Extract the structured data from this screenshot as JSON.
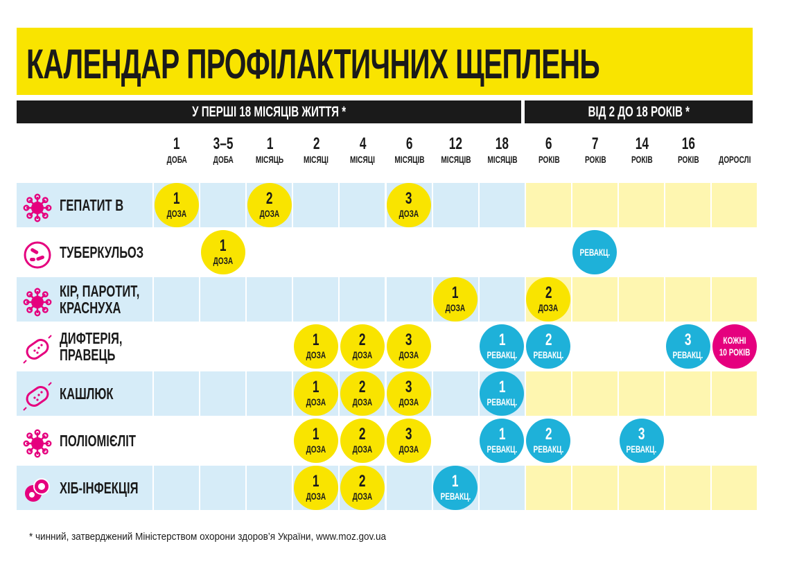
{
  "title": "КАЛЕНДАР ПРОФІЛАКТИЧНИХ ЩЕПЛЕНЬ",
  "bands": {
    "left": "У ПЕРШІ 18 МІСЯЦІВ ЖИТТЯ *",
    "right": "ВІД 2 ДО 18 РОКІВ *"
  },
  "colors": {
    "yellow": "#f9e400",
    "blue": "#1eb1d9",
    "magenta": "#e5007e",
    "light_blue": "#d6ecf8",
    "light_yellow": "#fef6b0",
    "icon": "#e5007e"
  },
  "columns": [
    {
      "n": "1",
      "u": "ДОБА"
    },
    {
      "n": "3–5",
      "u": "ДОБА"
    },
    {
      "n": "1",
      "u": "МІСЯЦЬ"
    },
    {
      "n": "2",
      "u": "МІСЯЦІ"
    },
    {
      "n": "4",
      "u": "МІСЯЦІ"
    },
    {
      "n": "6",
      "u": "МІСЯЦІВ"
    },
    {
      "n": "12",
      "u": "МІСЯЦІВ"
    },
    {
      "n": "18",
      "u": "МІСЯЦІВ"
    },
    {
      "n": "6",
      "u": "РОКІВ"
    },
    {
      "n": "7",
      "u": "РОКІВ"
    },
    {
      "n": "14",
      "u": "РОКІВ"
    },
    {
      "n": "16",
      "u": "РОКІВ"
    },
    {
      "n": "",
      "u": "ДОРОСЛІ"
    }
  ],
  "rows": [
    {
      "name": "ГЕПАТИТ В",
      "icon": "virus-icon",
      "shaded": true,
      "doses": [
        {
          "col": 0,
          "n": "1",
          "u": "ДОЗА",
          "c": "yellow"
        },
        {
          "col": 2,
          "n": "2",
          "u": "ДОЗА",
          "c": "yellow"
        },
        {
          "col": 5,
          "n": "3",
          "u": "ДОЗА",
          "c": "yellow"
        }
      ]
    },
    {
      "name": "ТУБЕРКУЛЬОЗ",
      "icon": "bacteria-icon",
      "shaded": false,
      "doses": [
        {
          "col": 1,
          "n": "1",
          "u": "ДОЗА",
          "c": "yellow"
        },
        {
          "col": 9,
          "n": "",
          "u": "РЕВАКЦ.",
          "c": "blue"
        }
      ]
    },
    {
      "name": "КІР, ПАРОТИТ, КРАСНУХА",
      "icon": "virus-icon",
      "shaded": true,
      "doses": [
        {
          "col": 6,
          "n": "1",
          "u": "ДОЗА",
          "c": "yellow"
        },
        {
          "col": 8,
          "n": "2",
          "u": "ДОЗА",
          "c": "yellow"
        }
      ]
    },
    {
      "name": "ДИФТЕРІЯ, ПРАВЕЦЬ",
      "icon": "bacillus-icon",
      "shaded": false,
      "doses": [
        {
          "col": 3,
          "n": "1",
          "u": "ДОЗА",
          "c": "yellow"
        },
        {
          "col": 4,
          "n": "2",
          "u": "ДОЗА",
          "c": "yellow"
        },
        {
          "col": 5,
          "n": "3",
          "u": "ДОЗА",
          "c": "yellow"
        },
        {
          "col": 7,
          "n": "1",
          "u": "РЕВАКЦ.",
          "c": "blue"
        },
        {
          "col": 8,
          "n": "2",
          "u": "РЕВАКЦ.",
          "c": "blue"
        },
        {
          "col": 11,
          "n": "3",
          "u": "РЕВАКЦ.",
          "c": "blue"
        },
        {
          "col": 12,
          "n": "КОЖНІ",
          "u": "10 РОКІВ",
          "c": "magenta"
        }
      ]
    },
    {
      "name": "КАШЛЮК",
      "icon": "bacillus-icon",
      "shaded": true,
      "doses": [
        {
          "col": 3,
          "n": "1",
          "u": "ДОЗА",
          "c": "yellow"
        },
        {
          "col": 4,
          "n": "2",
          "u": "ДОЗА",
          "c": "yellow"
        },
        {
          "col": 5,
          "n": "3",
          "u": "ДОЗА",
          "c": "yellow"
        },
        {
          "col": 7,
          "n": "1",
          "u": "РЕВАКЦ.",
          "c": "blue"
        }
      ]
    },
    {
      "name": "ПОЛІОМІЄЛІТ",
      "icon": "virus-icon",
      "shaded": false,
      "doses": [
        {
          "col": 3,
          "n": "1",
          "u": "ДОЗА",
          "c": "yellow"
        },
        {
          "col": 4,
          "n": "2",
          "u": "ДОЗА",
          "c": "yellow"
        },
        {
          "col": 5,
          "n": "3",
          "u": "ДОЗА",
          "c": "yellow"
        },
        {
          "col": 7,
          "n": "1",
          "u": "РЕВАКЦ.",
          "c": "blue"
        },
        {
          "col": 8,
          "n": "2",
          "u": "РЕВАКЦ.",
          "c": "blue"
        },
        {
          "col": 10,
          "n": "3",
          "u": "РЕВАКЦ.",
          "c": "blue"
        }
      ]
    },
    {
      "name": "ХІБ-ІНФЕКЦІЯ",
      "icon": "cell-icon",
      "shaded": true,
      "doses": [
        {
          "col": 3,
          "n": "1",
          "u": "ДОЗА",
          "c": "yellow"
        },
        {
          "col": 4,
          "n": "2",
          "u": "ДОЗА",
          "c": "yellow"
        },
        {
          "col": 6,
          "n": "1",
          "u": "РЕВАКЦ.",
          "c": "blue"
        }
      ]
    }
  ],
  "footnote": "* чинний, затверджений Міністерством охорони здоров’я України, www.moz.gov.ua"
}
